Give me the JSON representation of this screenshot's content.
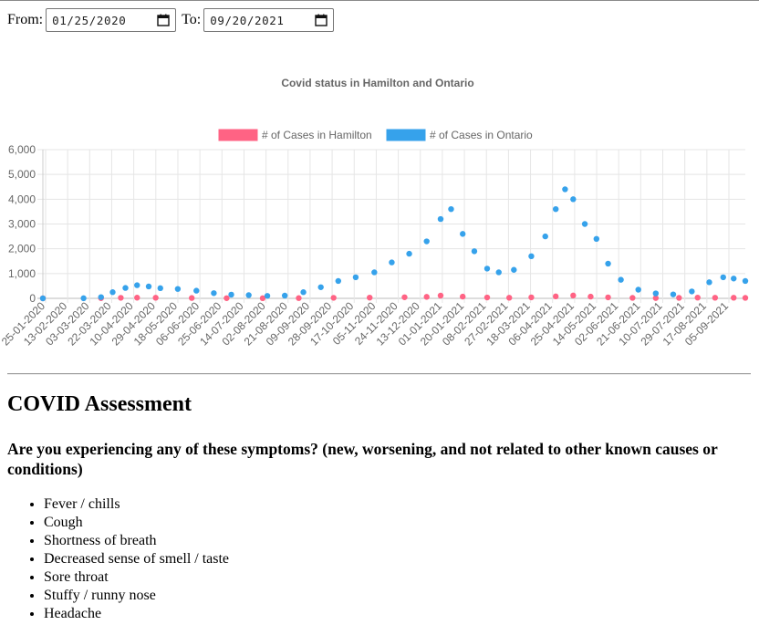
{
  "filters": {
    "from_label": "From:",
    "from_value": "01/25/2020",
    "to_label": "To:",
    "to_value": "09/20/2021"
  },
  "chart_data": {
    "type": "scatter",
    "title": "Covid status in Hamilton and Ontario",
    "legend_position": "top",
    "ylim": [
      0,
      6000
    ],
    "yticks": [
      "0",
      "1,000",
      "2,000",
      "3,000",
      "4,000",
      "5,000",
      "6,000"
    ],
    "x_start": "2020-01-25",
    "x_end": "2021-09-20",
    "xticks": [
      "25-01-2020",
      "13-02-2020",
      "03-03-2020",
      "22-03-2020",
      "10-04-2020",
      "29-04-2020",
      "18-05-2020",
      "06-06-2020",
      "25-06-2020",
      "14-07-2020",
      "02-08-2020",
      "21-08-2020",
      "09-09-2020",
      "28-09-2020",
      "17-10-2020",
      "05-11-2020",
      "24-11-2020",
      "13-12-2020",
      "01-01-2021",
      "20-01-2021",
      "08-02-2021",
      "27-02-2021",
      "18-03-2021",
      "06-04-2021",
      "25-04-2021",
      "14-05-2021",
      "02-06-2021",
      "21-06-2021",
      "10-07-2021",
      "29-07-2021",
      "17-08-2021",
      "05-09-2021"
    ],
    "grid": true,
    "series": [
      {
        "name": "# of Cases in Hamilton",
        "color": "#ff6384",
        "x": [
          "2020-01-25",
          "2020-03-15",
          "2020-04-01",
          "2020-04-15",
          "2020-05-01",
          "2020-06-01",
          "2020-07-01",
          "2020-08-01",
          "2020-09-01",
          "2020-10-01",
          "2020-11-01",
          "2020-12-01",
          "2020-12-20",
          "2021-01-01",
          "2021-01-20",
          "2021-02-10",
          "2021-03-01",
          "2021-03-20",
          "2021-04-10",
          "2021-04-25",
          "2021-05-10",
          "2021-05-25",
          "2021-06-15",
          "2021-07-05",
          "2021-07-25",
          "2021-08-10",
          "2021-08-25",
          "2021-09-10",
          "2021-09-20"
        ],
        "values": [
          2,
          8,
          22,
          28,
          25,
          15,
          8,
          6,
          10,
          22,
          30,
          45,
          60,
          110,
          70,
          35,
          25,
          40,
          80,
          115,
          70,
          40,
          20,
          12,
          20,
          30,
          25,
          25,
          20
        ]
      },
      {
        "name": "# of Cases in Ontario",
        "color": "#36a2eb",
        "x": [
          "2020-01-25",
          "2020-02-29",
          "2020-03-15",
          "2020-03-25",
          "2020-04-05",
          "2020-04-15",
          "2020-04-25",
          "2020-05-05",
          "2020-05-20",
          "2020-06-05",
          "2020-06-20",
          "2020-07-05",
          "2020-07-20",
          "2020-08-05",
          "2020-08-20",
          "2020-09-05",
          "2020-09-20",
          "2020-10-05",
          "2020-10-20",
          "2020-11-05",
          "2020-11-20",
          "2020-12-05",
          "2020-12-20",
          "2021-01-01",
          "2021-01-10",
          "2021-01-20",
          "2021-01-30",
          "2021-02-10",
          "2021-02-20",
          "2021-03-05",
          "2021-03-20",
          "2021-04-01",
          "2021-04-10",
          "2021-04-18",
          "2021-04-25",
          "2021-05-05",
          "2021-05-15",
          "2021-05-25",
          "2021-06-05",
          "2021-06-20",
          "2021-07-05",
          "2021-07-20",
          "2021-08-05",
          "2021-08-20",
          "2021-09-01",
          "2021-09-10",
          "2021-09-20"
        ],
        "values": [
          0,
          5,
          50,
          250,
          420,
          530,
          480,
          410,
          380,
          310,
          210,
          150,
          130,
          100,
          110,
          250,
          450,
          700,
          850,
          1050,
          1450,
          1800,
          2300,
          3200,
          3600,
          2600,
          1900,
          1200,
          1050,
          1150,
          1700,
          2500,
          3600,
          4400,
          4000,
          3000,
          2400,
          1400,
          750,
          350,
          200,
          160,
          280,
          650,
          850,
          800,
          700
        ]
      }
    ]
  },
  "assessment": {
    "heading": "COVID Assessment",
    "question": "Are you experiencing any of these symptoms? (new, worsening, and not related to other known causes or conditions)",
    "symptoms": [
      "Fever / chills",
      "Cough",
      "Shortness of breath",
      "Decreased sense of smell / taste",
      "Sore throat",
      "Stuffy / runny nose",
      "Headache"
    ]
  }
}
